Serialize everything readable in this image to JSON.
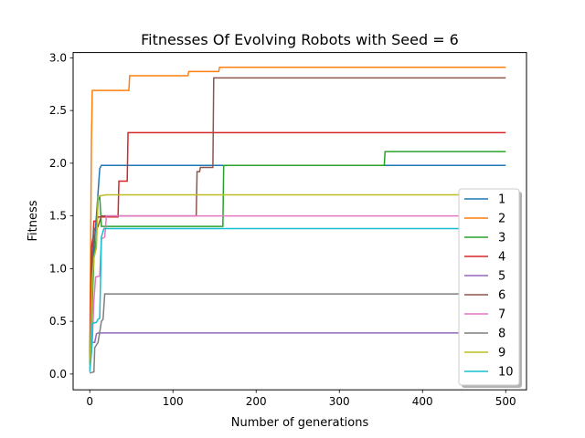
{
  "chart_data": {
    "type": "line",
    "title": "Fitnesses Of Evolving Robots with Seed = 6",
    "xlabel": "Number of generations",
    "ylabel": "Fitness",
    "xlim": [
      -20,
      525
    ],
    "ylim": [
      -0.15,
      3.05
    ],
    "xticks": [
      0,
      100,
      200,
      300,
      400,
      500
    ],
    "yticks": [
      0.0,
      0.5,
      1.0,
      1.5,
      2.0,
      2.5,
      3.0
    ],
    "ytick_labels": [
      "0.0",
      "0.5",
      "1.0",
      "1.5",
      "2.0",
      "2.5",
      "3.0"
    ],
    "legend_position": "lower-right",
    "grid": false,
    "series": [
      {
        "name": "1",
        "color": "#1f77b4",
        "points": [
          [
            0,
            0.05
          ],
          [
            3,
            0.75
          ],
          [
            5,
            1.2
          ],
          [
            8,
            1.5
          ],
          [
            12,
            1.95
          ],
          [
            14,
            1.98
          ],
          [
            500,
            1.98
          ]
        ]
      },
      {
        "name": "2",
        "color": "#ff7f0e",
        "points": [
          [
            0,
            0.08
          ],
          [
            2,
            2.2
          ],
          [
            3,
            2.69
          ],
          [
            47,
            2.69
          ],
          [
            48,
            2.83
          ],
          [
            118,
            2.83
          ],
          [
            119,
            2.87
          ],
          [
            155,
            2.87
          ],
          [
            156,
            2.91
          ],
          [
            500,
            2.91
          ]
        ]
      },
      {
        "name": "3",
        "color": "#2ca02c",
        "points": [
          [
            0,
            0.05
          ],
          [
            5,
            1.1
          ],
          [
            8,
            1.3
          ],
          [
            10,
            1.65
          ],
          [
            12,
            1.68
          ],
          [
            14,
            1.4
          ],
          [
            160,
            1.4
          ],
          [
            161,
            1.98
          ],
          [
            354,
            1.98
          ],
          [
            355,
            2.11
          ],
          [
            500,
            2.11
          ]
        ]
      },
      {
        "name": "4",
        "color": "#d62728",
        "points": [
          [
            0,
            0.1
          ],
          [
            2,
            1.2
          ],
          [
            4,
            1.3
          ],
          [
            5,
            1.45
          ],
          [
            8,
            1.45
          ],
          [
            10,
            1.49
          ],
          [
            34,
            1.49
          ],
          [
            35,
            1.83
          ],
          [
            45,
            1.83
          ],
          [
            46,
            2.29
          ],
          [
            500,
            2.29
          ]
        ]
      },
      {
        "name": "5",
        "color": "#9467bd",
        "points": [
          [
            0,
            0.05
          ],
          [
            3,
            0.3
          ],
          [
            6,
            0.3
          ],
          [
            8,
            0.38
          ],
          [
            10,
            0.39
          ],
          [
            500,
            0.39
          ]
        ]
      },
      {
        "name": "6",
        "color": "#8c564b",
        "points": [
          [
            0,
            0.1
          ],
          [
            3,
            1.1
          ],
          [
            5,
            1.38
          ],
          [
            8,
            1.38
          ],
          [
            10,
            1.4
          ],
          [
            14,
            1.5
          ],
          [
            128,
            1.5
          ],
          [
            129,
            1.92
          ],
          [
            132,
            1.92
          ],
          [
            133,
            1.96
          ],
          [
            148,
            1.96
          ],
          [
            149,
            2.81
          ],
          [
            500,
            2.81
          ]
        ]
      },
      {
        "name": "7",
        "color": "#e377c2",
        "points": [
          [
            0,
            0.05
          ],
          [
            3,
            0.3
          ],
          [
            5,
            0.7
          ],
          [
            7,
            0.92
          ],
          [
            12,
            0.93
          ],
          [
            14,
            1.28
          ],
          [
            18,
            1.3
          ],
          [
            20,
            1.5
          ],
          [
            500,
            1.5
          ]
        ]
      },
      {
        "name": "8",
        "color": "#7f7f7f",
        "points": [
          [
            0,
            0.01
          ],
          [
            5,
            0.02
          ],
          [
            6,
            0.25
          ],
          [
            10,
            0.3
          ],
          [
            14,
            0.5
          ],
          [
            16,
            0.52
          ],
          [
            18,
            0.76
          ],
          [
            500,
            0.76
          ]
        ]
      },
      {
        "name": "9",
        "color": "#bcbd22",
        "points": [
          [
            0,
            0.05
          ],
          [
            3,
            0.9
          ],
          [
            5,
            1.1
          ],
          [
            8,
            1.2
          ],
          [
            10,
            1.68
          ],
          [
            12,
            1.69
          ],
          [
            20,
            1.7
          ],
          [
            500,
            1.7
          ]
        ]
      },
      {
        "name": "10",
        "color": "#17becf",
        "points": [
          [
            0,
            0.02
          ],
          [
            2,
            0.2
          ],
          [
            3,
            0.48
          ],
          [
            8,
            0.49
          ],
          [
            10,
            0.52
          ],
          [
            12,
            0.53
          ],
          [
            14,
            1.3
          ],
          [
            17,
            1.38
          ],
          [
            500,
            1.38
          ]
        ]
      }
    ]
  }
}
